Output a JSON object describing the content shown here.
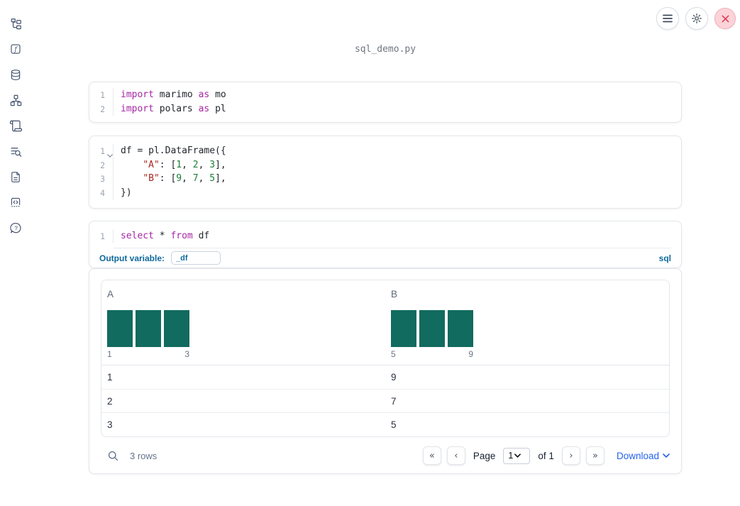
{
  "topbar": {
    "filename": "sql_demo.py",
    "buttons": [
      {
        "name": "notebook-menu"
      },
      {
        "name": "settings"
      },
      {
        "name": "shutdown"
      }
    ]
  },
  "sidebar": {
    "items": [
      {
        "name": "file-explorer"
      },
      {
        "name": "variables"
      },
      {
        "name": "datasources"
      },
      {
        "name": "dependencies"
      },
      {
        "name": "logs"
      },
      {
        "name": "outline-search"
      },
      {
        "name": "documentation"
      },
      {
        "name": "snippets"
      },
      {
        "name": "help"
      }
    ]
  },
  "cells": [
    {
      "id": "imports",
      "lines": [
        {
          "num": "1",
          "fold": false,
          "tokens": [
            [
              "kw",
              "import"
            ],
            [
              "pl",
              " marimo "
            ],
            [
              "kw",
              "as"
            ],
            [
              "pl",
              " mo"
            ]
          ]
        },
        {
          "num": "2",
          "fold": false,
          "tokens": [
            [
              "kw",
              "import"
            ],
            [
              "pl",
              " polars "
            ],
            [
              "kw",
              "as"
            ],
            [
              "pl",
              " pl"
            ]
          ]
        }
      ]
    },
    {
      "id": "dataframe",
      "lines": [
        {
          "num": "1",
          "fold": true,
          "tokens": [
            [
              "pl",
              "df = pl.DataFrame({"
            ]
          ]
        },
        {
          "num": "2",
          "fold": false,
          "tokens": [
            [
              "pl",
              "    "
            ],
            [
              "str",
              "\"A\""
            ],
            [
              "pl",
              ": ["
            ],
            [
              "num",
              "1"
            ],
            [
              "pl",
              ", "
            ],
            [
              "num",
              "2"
            ],
            [
              "pl",
              ", "
            ],
            [
              "num",
              "3"
            ],
            [
              "pl",
              "],"
            ]
          ]
        },
        {
          "num": "3",
          "fold": false,
          "tokens": [
            [
              "pl",
              "    "
            ],
            [
              "str",
              "\"B\""
            ],
            [
              "pl",
              ": ["
            ],
            [
              "num",
              "9"
            ],
            [
              "pl",
              ", "
            ],
            [
              "num",
              "7"
            ],
            [
              "pl",
              ", "
            ],
            [
              "num",
              "5"
            ],
            [
              "pl",
              "],"
            ]
          ]
        },
        {
          "num": "4",
          "fold": false,
          "tokens": [
            [
              "pl",
              "})"
            ]
          ]
        }
      ]
    },
    {
      "id": "sql",
      "lines": [
        {
          "num": "1",
          "fold": false,
          "tokens": [
            [
              "kw",
              "select"
            ],
            [
              "pl",
              " * "
            ],
            [
              "kw",
              "from"
            ],
            [
              "pl",
              " df"
            ]
          ]
        }
      ]
    }
  ],
  "sql_cell": {
    "output_variable_label": "Output variable:",
    "output_variable_value": "_df",
    "language": "sql"
  },
  "table": {
    "columns": [
      {
        "label": "A",
        "hist": {
          "counts": [
            1,
            1,
            1
          ],
          "min_label": "1",
          "max_label": "3"
        }
      },
      {
        "label": "B",
        "hist": {
          "counts": [
            1,
            1,
            1
          ],
          "min_label": "5",
          "max_label": "9"
        }
      }
    ],
    "rows": [
      [
        "1",
        "9"
      ],
      [
        "2",
        "7"
      ],
      [
        "3",
        "5"
      ]
    ],
    "footer": {
      "row_count": "3 rows",
      "page_label": "Page",
      "page_value": "1",
      "of_label": "of 1",
      "download_label": "Download"
    }
  },
  "colors": {
    "keyword": "#a626a4",
    "string": "#a8271f",
    "number": "#1a7f37",
    "histogram_bar": "#116b5e",
    "accent_blue": "#0f689b",
    "link_blue": "#2563eb"
  }
}
